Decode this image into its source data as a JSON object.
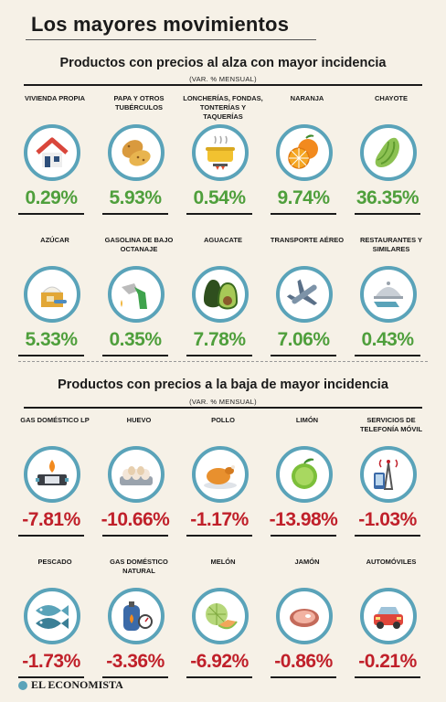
{
  "title": "Los mayores movimientos",
  "up": {
    "heading": "Productos con precios al alza con mayor incidencia",
    "subheading": "(VAR. % MENSUAL)",
    "items": [
      {
        "label": "VIVIENDA PROPIA",
        "value": "0.29%",
        "icon": "house-icon"
      },
      {
        "label": "PAPA Y OTROS TUBÉRCULOS",
        "value": "5.93%",
        "icon": "potato-icon"
      },
      {
        "label": "LONCHERÍAS, FONDAS, TONTERÍAS Y TAQUERÍAS",
        "value": "0.54%",
        "icon": "cooking-pot-icon"
      },
      {
        "label": "NARANJA",
        "value": "9.74%",
        "icon": "orange-icon"
      },
      {
        "label": "CHAYOTE",
        "value": "36.35%",
        "icon": "chayote-icon"
      },
      {
        "label": "AZÚCAR",
        "value": "5.33%",
        "icon": "sugar-icon"
      },
      {
        "label": "GASOLINA DE BAJO OCTANAJE",
        "value": "0.35%",
        "icon": "fuel-nozzle-icon"
      },
      {
        "label": "AGUACATE",
        "value": "7.78%",
        "icon": "avocado-icon"
      },
      {
        "label": "TRANSPORTE AÉREO",
        "value": "7.06%",
        "icon": "airplane-icon"
      },
      {
        "label": "RESTAURANTES Y SIMILARES",
        "value": "0.43%",
        "icon": "cloche-icon"
      }
    ]
  },
  "down": {
    "heading": "Productos con precios a la baja de mayor incidencia",
    "subheading": "(VAR. % MENSUAL)",
    "items": [
      {
        "label": "GAS DOMÉSTICO LP",
        "value": "-7.81%",
        "icon": "gas-stove-icon"
      },
      {
        "label": "HUEVO",
        "value": "-10.66%",
        "icon": "eggs-icon"
      },
      {
        "label": "POLLO",
        "value": "-1.17%",
        "icon": "roast-chicken-icon"
      },
      {
        "label": "LIMÓN",
        "value": "-13.98%",
        "icon": "lime-icon"
      },
      {
        "label": "SERVICIOS DE TELEFONÍA MÓVIL",
        "value": "-1.03%",
        "icon": "mobile-tower-icon"
      },
      {
        "label": "PESCADO",
        "value": "-1.73%",
        "icon": "fish-icon"
      },
      {
        "label": "GAS DOMÉSTICO NATURAL",
        "value": "-3.36%",
        "icon": "gas-meter-icon"
      },
      {
        "label": "MELÓN",
        "value": "-6.92%",
        "icon": "melon-icon"
      },
      {
        "label": "JAMÓN",
        "value": "-0.86%",
        "icon": "ham-icon"
      },
      {
        "label": "AUTOMÓVILES",
        "value": "-0.21%",
        "icon": "car-icon"
      }
    ]
  },
  "brand": "EL ECONOMISTA",
  "colors": {
    "up": "#4f9f3c",
    "down": "#c0202a",
    "ring": "#5aa3b9"
  }
}
